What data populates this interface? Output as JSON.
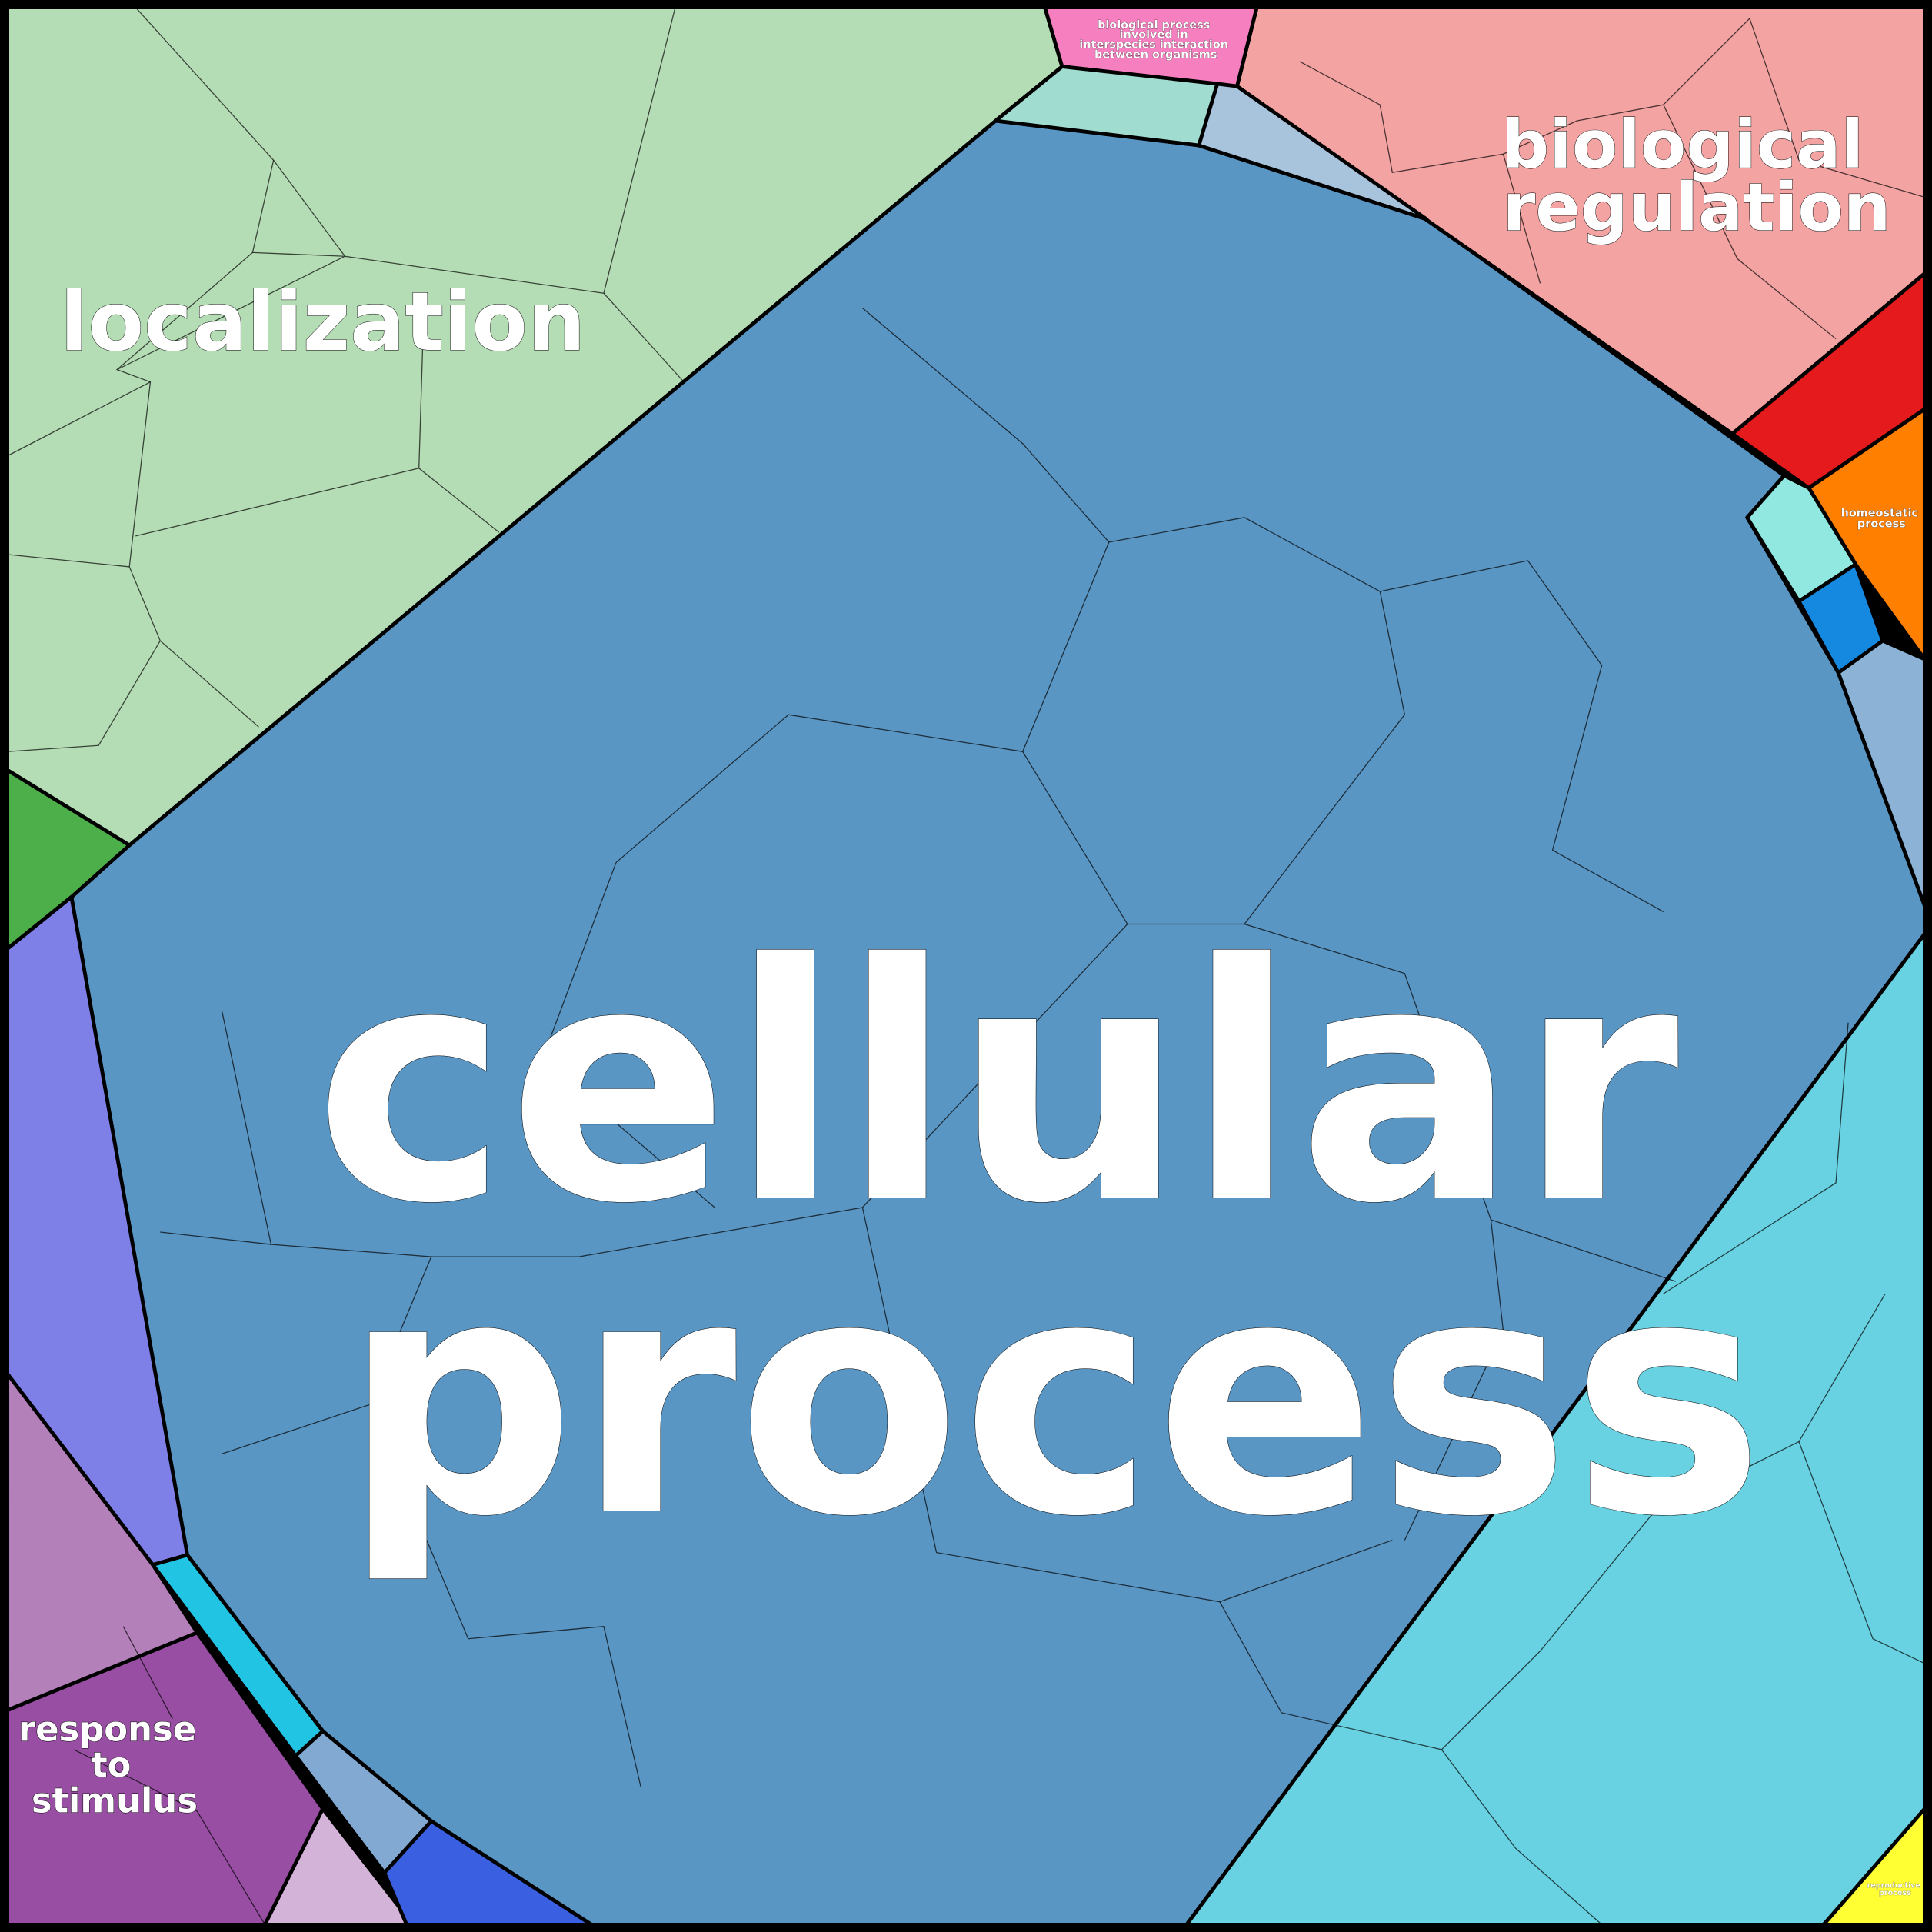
{
  "title": "",
  "regions": [
    {
      "label_lines": [
        "cellular",
        "process"
      ],
      "color": "#5a96c4"
    },
    {
      "label_lines": [
        "localization"
      ],
      "color": "#b5ddb5"
    },
    {
      "label_lines": [
        "biological",
        "regulation"
      ],
      "color": "#f4a3a3"
    },
    {
      "label_lines": [
        "response",
        "to",
        "stimulus"
      ],
      "color": "#984ea3"
    },
    {
      "label_lines": [
        "biological process",
        "involved in",
        "interspecies interaction",
        "between organisms"
      ],
      "color": "#f57fbf"
    },
    {
      "label_lines": [
        "homeostatic",
        "process"
      ],
      "color": "#ff7f00"
    },
    {
      "label_lines": [
        "reproductive",
        "process"
      ],
      "color": "#ffff33"
    }
  ],
  "unlabeled_colors": [
    "#4daf4a",
    "#a0dccf",
    "#a8c4dd",
    "#e41a1c",
    "#90e8e0",
    "#1588e0",
    "#8cb3d6",
    "#68d2e2",
    "#7f7fe8",
    "#b380b9",
    "#d4b3d9",
    "#22c4e4",
    "#82a9d1",
    "#3a5fe0"
  ]
}
